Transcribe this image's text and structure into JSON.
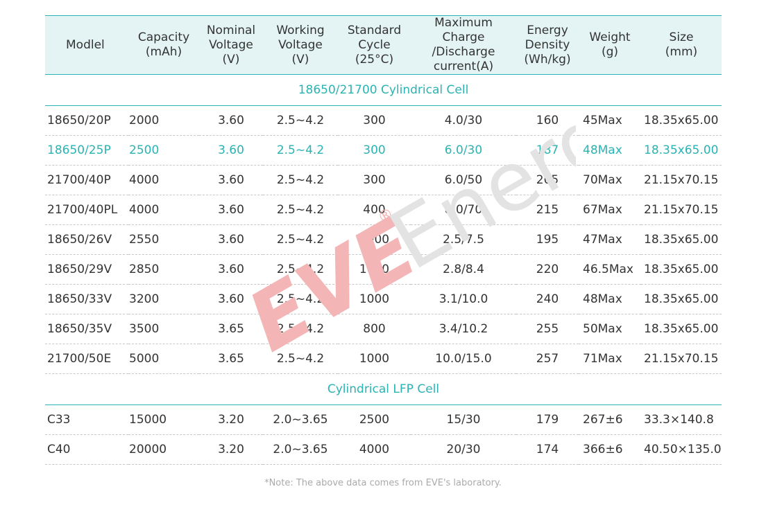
{
  "table": {
    "headers": [
      {
        "lines": [
          "Modlel"
        ]
      },
      {
        "lines": [
          "Capacity",
          "(mAh)"
        ]
      },
      {
        "lines": [
          "Nominal",
          "Voltage",
          "(V)"
        ]
      },
      {
        "lines": [
          "Working",
          "Voltage",
          "(V)"
        ]
      },
      {
        "lines": [
          "Standard",
          "Cycle",
          "(25°C)"
        ]
      },
      {
        "lines": [
          "Maximum Charge",
          "/Discharge",
          "current(A)"
        ]
      },
      {
        "lines": [
          "Energy",
          "Density",
          "(Wh/kg)"
        ]
      },
      {
        "lines": [
          "Weight",
          "(g)"
        ]
      },
      {
        "lines": [
          "Size",
          "(mm)"
        ]
      }
    ],
    "sections": [
      {
        "title": "18650/21700 Cylindrical Cell",
        "rows": [
          {
            "cells": [
              "18650/20P",
              "2000",
              "3.60",
              "2.5~4.2",
              "300",
              "4.0/30",
              "160",
              "45Max",
              "18.35x65.00"
            ],
            "highlight": false
          },
          {
            "cells": [
              "18650/25P",
              "2500",
              "3.60",
              "2.5~4.2",
              "300",
              "6.0/30",
              "187",
              "48Max",
              "18.35x65.00"
            ],
            "highlight": true
          },
          {
            "cells": [
              "21700/40P",
              "4000",
              "3.60",
              "2.5~4.2",
              "300",
              "6.0/50",
              "205",
              "70Max",
              "21.15x70.15"
            ],
            "highlight": false
          },
          {
            "cells": [
              "21700/40PL",
              "4000",
              "3.60",
              "2.5~4.2",
              "400",
              "8.0/70",
              "215",
              "67Max",
              "21.15x70.15"
            ],
            "highlight": false
          },
          {
            "cells": [
              "18650/26V",
              "2550",
              "3.60",
              "2.5~4.2",
              "1000",
              "2.5/7.5",
              "195",
              "47Max",
              "18.35x65.00"
            ],
            "highlight": false
          },
          {
            "cells": [
              "18650/29V",
              "2850",
              "3.60",
              "2.5~4.2",
              "1000",
              "2.8/8.4",
              "220",
              "46.5Max",
              "18.35x65.00"
            ],
            "highlight": false
          },
          {
            "cells": [
              "18650/33V",
              "3200",
              "3.60",
              "2.5~4.2",
              "1000",
              "3.1/10.0",
              "240",
              "48Max",
              "18.35x65.00"
            ],
            "highlight": false
          },
          {
            "cells": [
              "18650/35V",
              "3500",
              "3.65",
              "2.5~4.2",
              "800",
              "3.4/10.2",
              "255",
              "50Max",
              "18.35x65.00"
            ],
            "highlight": false
          },
          {
            "cells": [
              "21700/50E",
              "5000",
              "3.65",
              "2.5~4.2",
              "1000",
              "10.0/15.0",
              "257",
              "71Max",
              "21.15x70.15"
            ],
            "highlight": false
          }
        ]
      },
      {
        "title": "Cylindrical LFP Cell",
        "rows": [
          {
            "cells": [
              "C33",
              "15000",
              "3.20",
              "2.0~3.65",
              "2500",
              "15/30",
              "179",
              "267±6",
              "33.3×140.8"
            ],
            "highlight": false
          },
          {
            "cells": [
              "C40",
              "20000",
              "3.20",
              "2.0~3.65",
              "4000",
              "20/30",
              "174",
              "366±6",
              "40.50×135.0"
            ],
            "highlight": false
          }
        ]
      }
    ]
  },
  "watermark": {
    "logo_text": "EVE",
    "brand_text": "Energy",
    "registered_mark": "®"
  },
  "note": "*Note: The above data comes from EVE's laboratory.",
  "colors": {
    "accent": "#2ab3b3",
    "header_bg": "#e4f4f4",
    "watermark_red": "#f3b5b5",
    "watermark_gray": "#e3e3e3"
  }
}
